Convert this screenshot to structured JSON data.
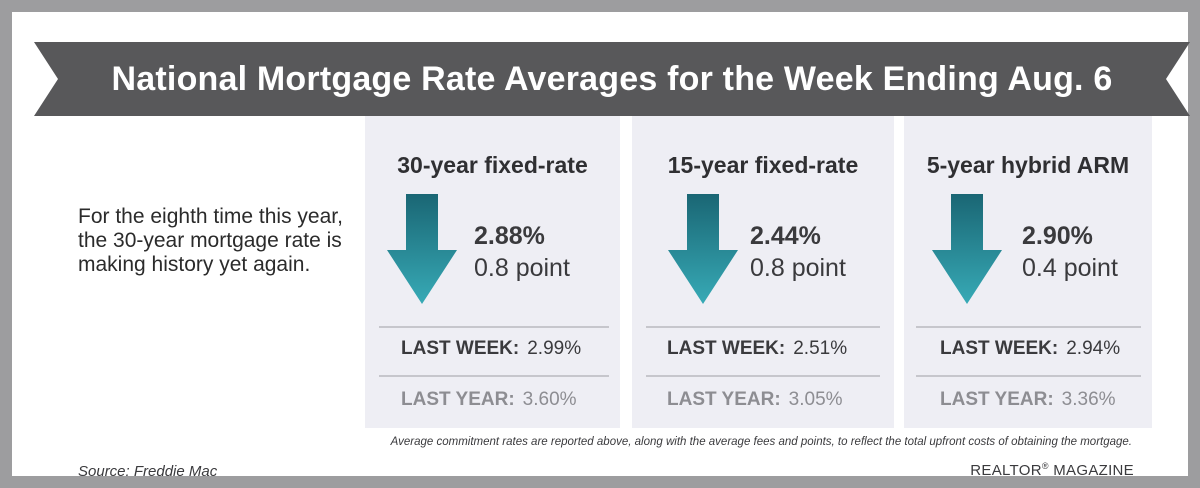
{
  "banner": {
    "title": "National Mortgage Rate Averages for the Week Ending Aug. 6"
  },
  "intro": {
    "text": "For the eighth time this year, the 30-year mortgage rate is making history yet again."
  },
  "panels": [
    {
      "title": "30-year fixed-rate",
      "rate": "2.88%",
      "change": "0.8 point",
      "direction": "down",
      "last_week_label": "LAST WEEK:",
      "last_week_value": "2.99%",
      "last_year_label": "LAST YEAR:",
      "last_year_value": "3.60%"
    },
    {
      "title": "15-year fixed-rate",
      "rate": "2.44%",
      "change": "0.8 point",
      "direction": "down",
      "last_week_label": "LAST WEEK:",
      "last_week_value": "2.51%",
      "last_year_label": "LAST YEAR:",
      "last_year_value": "3.05%"
    },
    {
      "title": "5-year hybrid ARM",
      "rate": "2.90%",
      "change": "0.4 point",
      "direction": "down",
      "last_week_label": "LAST WEEK:",
      "last_week_value": "2.94%",
      "last_year_label": "LAST YEAR:",
      "last_year_value": "3.36%"
    }
  ],
  "footnote": "Average commitment rates are reported above, along with the average fees and points, to reflect the total upfront costs of obtaining the mortgage.",
  "source": "Source: Freddie Mac",
  "brand": {
    "name": "REALTOR",
    "mark": "®",
    "suffix": " MAGAZINE"
  },
  "colors": {
    "frame": "#9d9d9f",
    "banner": "#58585a",
    "panel": "#eeeef4",
    "arrow_top": "#1a6674",
    "arrow_bottom": "#37aab6"
  }
}
